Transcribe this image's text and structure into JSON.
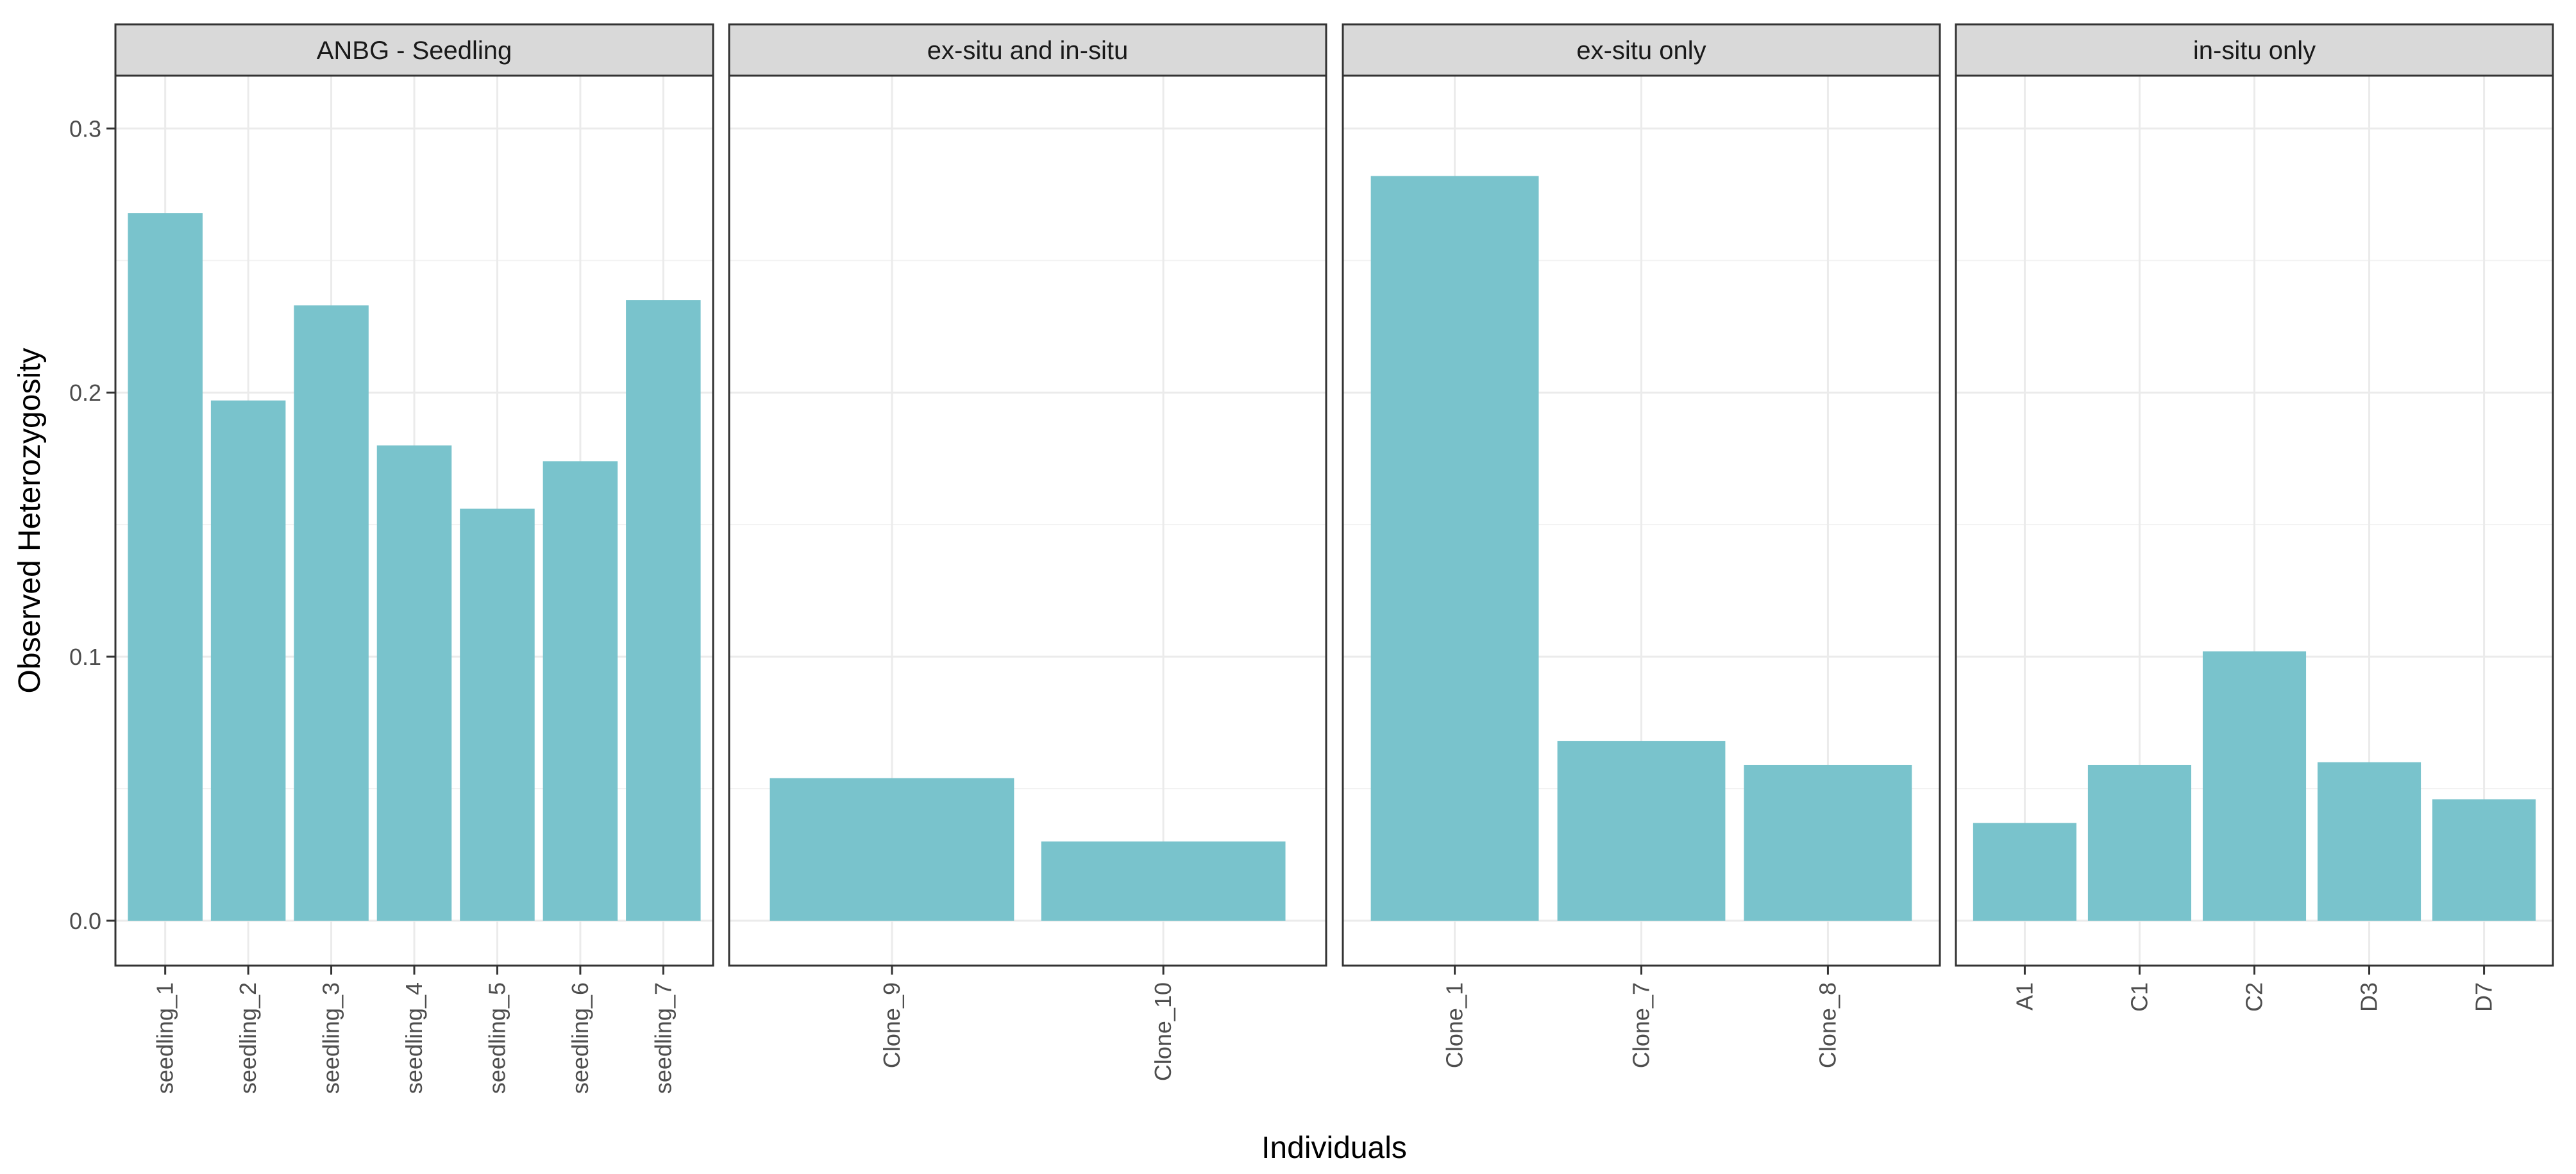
{
  "chart_data": {
    "type": "bar",
    "xlabel": "Individuals",
    "ylabel": "Observed Heterozygosity",
    "ylim": [
      -0.017,
      0.32
    ],
    "y_ticks": [
      0.0,
      0.1,
      0.2,
      0.3
    ],
    "y_tick_labels": [
      "0.0",
      "0.1",
      "0.2",
      "0.3"
    ],
    "grid": true,
    "bar_color": "#79C3CC",
    "facets": [
      {
        "label": "ANBG - Seedling",
        "categories": [
          "seedling_1",
          "seedling_2",
          "seedling_3",
          "seedling_4",
          "seedling_5",
          "seedling_6",
          "seedling_7"
        ],
        "values": [
          0.268,
          0.197,
          0.233,
          0.18,
          0.156,
          0.174,
          0.235
        ]
      },
      {
        "label": "ex-situ and in-situ",
        "categories": [
          "Clone_9",
          "Clone_10"
        ],
        "values": [
          0.054,
          0.03
        ]
      },
      {
        "label": "ex-situ only",
        "categories": [
          "Clone_1",
          "Clone_7",
          "Clone_8"
        ],
        "values": [
          0.282,
          0.068,
          0.059
        ]
      },
      {
        "label": "in-situ only",
        "categories": [
          "A1",
          "C1",
          "C2",
          "D3",
          "D7"
        ],
        "values": [
          0.037,
          0.059,
          0.102,
          0.06,
          0.046
        ]
      }
    ]
  }
}
